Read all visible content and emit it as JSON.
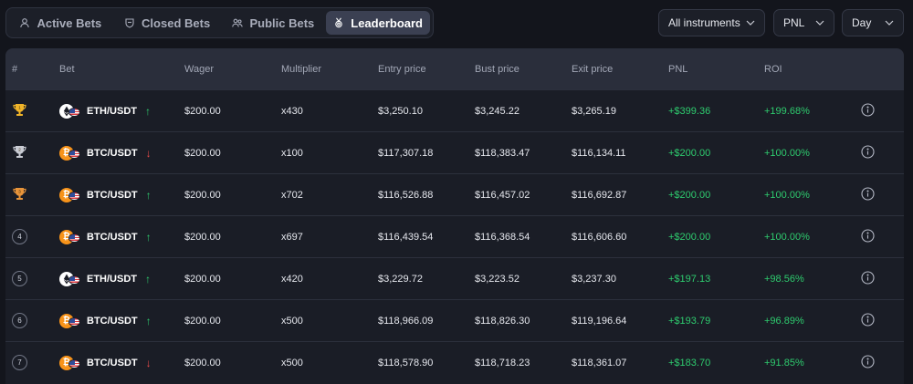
{
  "tabs": [
    {
      "label": "Active Bets",
      "icon": "user-icon",
      "active": false
    },
    {
      "label": "Closed Bets",
      "icon": "shield-icon",
      "active": false
    },
    {
      "label": "Public Bets",
      "icon": "users-icon",
      "active": false
    },
    {
      "label": "Leaderboard",
      "icon": "medal-icon",
      "active": true
    }
  ],
  "filters": {
    "instrument": "All instruments",
    "metric": "PNL",
    "period": "Day"
  },
  "table": {
    "headers": [
      "#",
      "Bet",
      "Wager",
      "Multiplier",
      "Entry price",
      "Bust price",
      "Exit price",
      "PNL",
      "ROI"
    ],
    "rows": [
      {
        "rank": "1",
        "rank_type": "gold-trophy",
        "coin": "eth",
        "pair": "ETH/USDT",
        "direction": "up",
        "wager": "$200.00",
        "multiplier": "x430",
        "entry": "$3,250.10",
        "bust": "$3,245.22",
        "exit": "$3,265.19",
        "pnl": "+$399.36",
        "roi": "+199.68%"
      },
      {
        "rank": "2",
        "rank_type": "silver-trophy",
        "coin": "btc",
        "pair": "BTC/USDT",
        "direction": "down",
        "wager": "$200.00",
        "multiplier": "x100",
        "entry": "$117,307.18",
        "bust": "$118,383.47",
        "exit": "$116,134.11",
        "pnl": "+$200.00",
        "roi": "+100.00%"
      },
      {
        "rank": "3",
        "rank_type": "bronze-trophy",
        "coin": "btc",
        "pair": "BTC/USDT",
        "direction": "up",
        "wager": "$200.00",
        "multiplier": "x702",
        "entry": "$116,526.88",
        "bust": "$116,457.02",
        "exit": "$116,692.87",
        "pnl": "+$200.00",
        "roi": "+100.00%"
      },
      {
        "rank": "4",
        "rank_type": "circle",
        "coin": "btc",
        "pair": "BTC/USDT",
        "direction": "up",
        "wager": "$200.00",
        "multiplier": "x697",
        "entry": "$116,439.54",
        "bust": "$116,368.54",
        "exit": "$116,606.60",
        "pnl": "+$200.00",
        "roi": "+100.00%"
      },
      {
        "rank": "5",
        "rank_type": "circle",
        "coin": "eth",
        "pair": "ETH/USDT",
        "direction": "up",
        "wager": "$200.00",
        "multiplier": "x420",
        "entry": "$3,229.72",
        "bust": "$3,223.52",
        "exit": "$3,237.30",
        "pnl": "+$197.13",
        "roi": "+98.56%"
      },
      {
        "rank": "6",
        "rank_type": "circle",
        "coin": "btc",
        "pair": "BTC/USDT",
        "direction": "up",
        "wager": "$200.00",
        "multiplier": "x500",
        "entry": "$118,966.09",
        "bust": "$118,826.30",
        "exit": "$119,196.64",
        "pnl": "+$193.79",
        "roi": "+96.89%"
      },
      {
        "rank": "7",
        "rank_type": "circle",
        "coin": "btc",
        "pair": "BTC/USDT",
        "direction": "down",
        "wager": "$200.00",
        "multiplier": "x500",
        "entry": "$118,578.90",
        "bust": "$118,718.23",
        "exit": "$118,361.07",
        "pnl": "+$183.70",
        "roi": "+91.85%"
      }
    ]
  },
  "colors": {
    "positive": "#2ecb6e",
    "negative": "#ef4b4b",
    "gold": "#f0b429",
    "silver": "#c9ccd4",
    "bronze": "#e8943a",
    "btc": "#f7931a"
  }
}
